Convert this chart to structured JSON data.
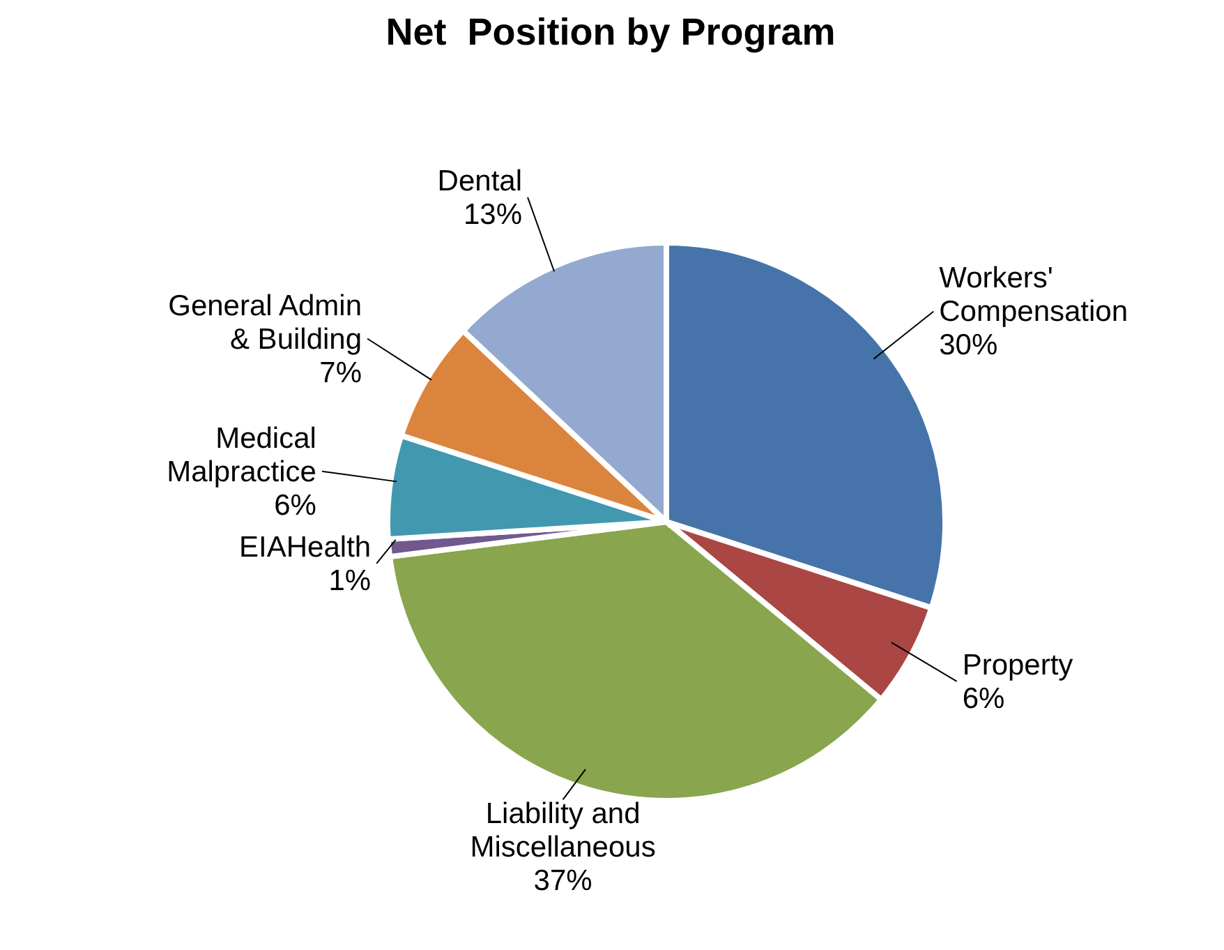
{
  "chart_data": {
    "type": "pie",
    "title": "Net  Position by Program",
    "categories": [
      "Workers'\nCompensation",
      "Property",
      "Liability and\nMiscellaneous",
      "EIAHealth",
      "Medical\nMalpractice",
      "General Admin\n& Building",
      "Dental"
    ],
    "values": [
      30,
      6,
      37,
      1,
      6,
      7,
      13
    ],
    "value_labels": [
      "30%",
      "6%",
      "37%",
      "1%",
      "6%",
      "7%",
      "13%"
    ],
    "colors": [
      "#4674aa",
      "#aa4643",
      "#89a54e",
      "#71588f",
      "#4198af",
      "#db843d",
      "#93a9cf"
    ],
    "legend": false
  }
}
